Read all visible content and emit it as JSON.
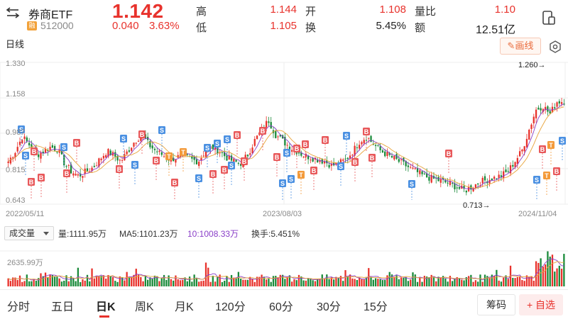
{
  "header": {
    "title": "券商ETF",
    "market_badge": "融",
    "code": "512000",
    "price": "1.142",
    "change": "0.040",
    "change_pct": "3.63%",
    "quotes": [
      {
        "label": "高",
        "value": "1.144",
        "color": "#e8322c"
      },
      {
        "label": "开",
        "value": "1.108",
        "color": "#e8322c"
      },
      {
        "label": "量比",
        "value": "1.10",
        "color": "#e8322c"
      },
      {
        "label": "低",
        "value": "1.105",
        "color": "#e8322c"
      },
      {
        "label": "换",
        "value": "5.45%",
        "color": "#222222"
      },
      {
        "label": "额",
        "value": "12.51亿",
        "color": "#222222"
      }
    ],
    "icons": {
      "back": "back-arrow-icon",
      "phone": "phone-switch-icon"
    }
  },
  "toolbar": {
    "period_label": "日线",
    "draw_label": "画线",
    "icons": {
      "draw": "pencil-icon",
      "settings": "settings-icon"
    }
  },
  "chart": {
    "y_labels": [
      "1.330",
      "1.158",
      "0.987",
      "0.815",
      "0.643"
    ],
    "x_labels": [
      "2022/05/11",
      "2023/08/03",
      "2024/11/04"
    ],
    "high_note": "1.260→",
    "low_note": "0.713→"
  },
  "volume": {
    "selector_label": "成交量",
    "vol_text": "量:1111.95万",
    "ma5_text": "MA5:1101.23万",
    "ma10_text": "10:1008.33万",
    "turnover_text": "换手:5.451%",
    "axis_label": "2635.99万"
  },
  "tabs": [
    {
      "label": "分时",
      "active": false
    },
    {
      "label": "五日",
      "active": false
    },
    {
      "label": "日K",
      "active": true
    },
    {
      "label": "周K",
      "active": false
    },
    {
      "label": "月K",
      "active": false
    },
    {
      "label": "120分",
      "active": false
    },
    {
      "label": "60分",
      "active": false
    },
    {
      "label": "30分",
      "active": false
    },
    {
      "label": "15分",
      "active": false
    }
  ],
  "actions": {
    "chips_label": "筹码",
    "favorite_label": "+ 自选"
  },
  "colors": {
    "up": "#e8322c",
    "down": "#1a8a3a",
    "ma5": "#8a3fc8",
    "ma10": "#e8a33a",
    "buy": "#e8585a",
    "sell": "#4a90e2",
    "t": "#f39a3a"
  },
  "chart_data": {
    "type": "candlestick",
    "x_range": [
      "2022/05/11",
      "2024/11/04"
    ],
    "ylim": [
      0.643,
      1.33
    ],
    "y_ticks": [
      1.33,
      1.158,
      0.987,
      0.815,
      0.643
    ],
    "close_approx": [
      0.85,
      0.9,
      0.97,
      0.93,
      0.88,
      0.9,
      0.92,
      0.91,
      0.84,
      0.8,
      0.78,
      0.8,
      0.82,
      0.86,
      0.9,
      0.88,
      0.85,
      0.9,
      0.95,
      0.98,
      0.93,
      0.9,
      0.88,
      0.86,
      0.87,
      0.88,
      0.86,
      0.85,
      0.9,
      0.92,
      0.9,
      0.87,
      0.85,
      0.84,
      0.88,
      0.95,
      1.0,
      1.05,
      0.98,
      0.95,
      0.92,
      0.9,
      0.88,
      0.87,
      0.86,
      0.85,
      0.83,
      0.84,
      0.86,
      0.9,
      0.95,
      0.97,
      0.93,
      0.9,
      0.88,
      0.86,
      0.84,
      0.82,
      0.8,
      0.78,
      0.77,
      0.76,
      0.75,
      0.74,
      0.72,
      0.71,
      0.73,
      0.75,
      0.76,
      0.77,
      0.78,
      0.8,
      0.85,
      0.9,
      1.0,
      1.1,
      1.12,
      1.08,
      1.14,
      1.142
    ],
    "annotations": {
      "high": 1.26,
      "low": 0.713
    },
    "volume_axis_max": "2635.99万"
  }
}
